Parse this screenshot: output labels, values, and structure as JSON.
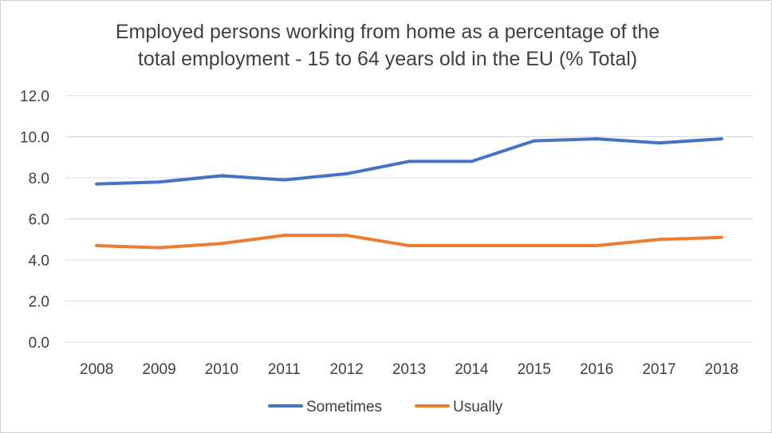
{
  "chart_data": {
    "type": "line",
    "title_lines": [
      "Employed persons working from home as a percentage of the",
      "total employment - 15 to 64 years old in the EU (% Total)"
    ],
    "categories": [
      "2008",
      "2009",
      "2010",
      "2011",
      "2012",
      "2013",
      "2014",
      "2015",
      "2016",
      "2017",
      "2018"
    ],
    "series": [
      {
        "name": "Sometimes",
        "color": "#4472C4",
        "values": [
          7.7,
          7.8,
          8.1,
          7.9,
          8.2,
          8.8,
          8.8,
          9.8,
          9.9,
          9.7,
          9.9
        ]
      },
      {
        "name": "Usually",
        "color": "#ED7D31",
        "values": [
          4.7,
          4.6,
          4.8,
          5.2,
          5.2,
          4.7,
          4.7,
          4.7,
          4.7,
          5.0,
          5.1
        ]
      }
    ],
    "y_ticks": [
      "0.0",
      "2.0",
      "4.0",
      "6.0",
      "8.0",
      "10.0",
      "12.0"
    ],
    "ylim": [
      0,
      12
    ],
    "gridlines": true,
    "legend_position": "bottom",
    "xlabel": "",
    "ylabel": "",
    "gridline_color": "#d9d9d9"
  }
}
